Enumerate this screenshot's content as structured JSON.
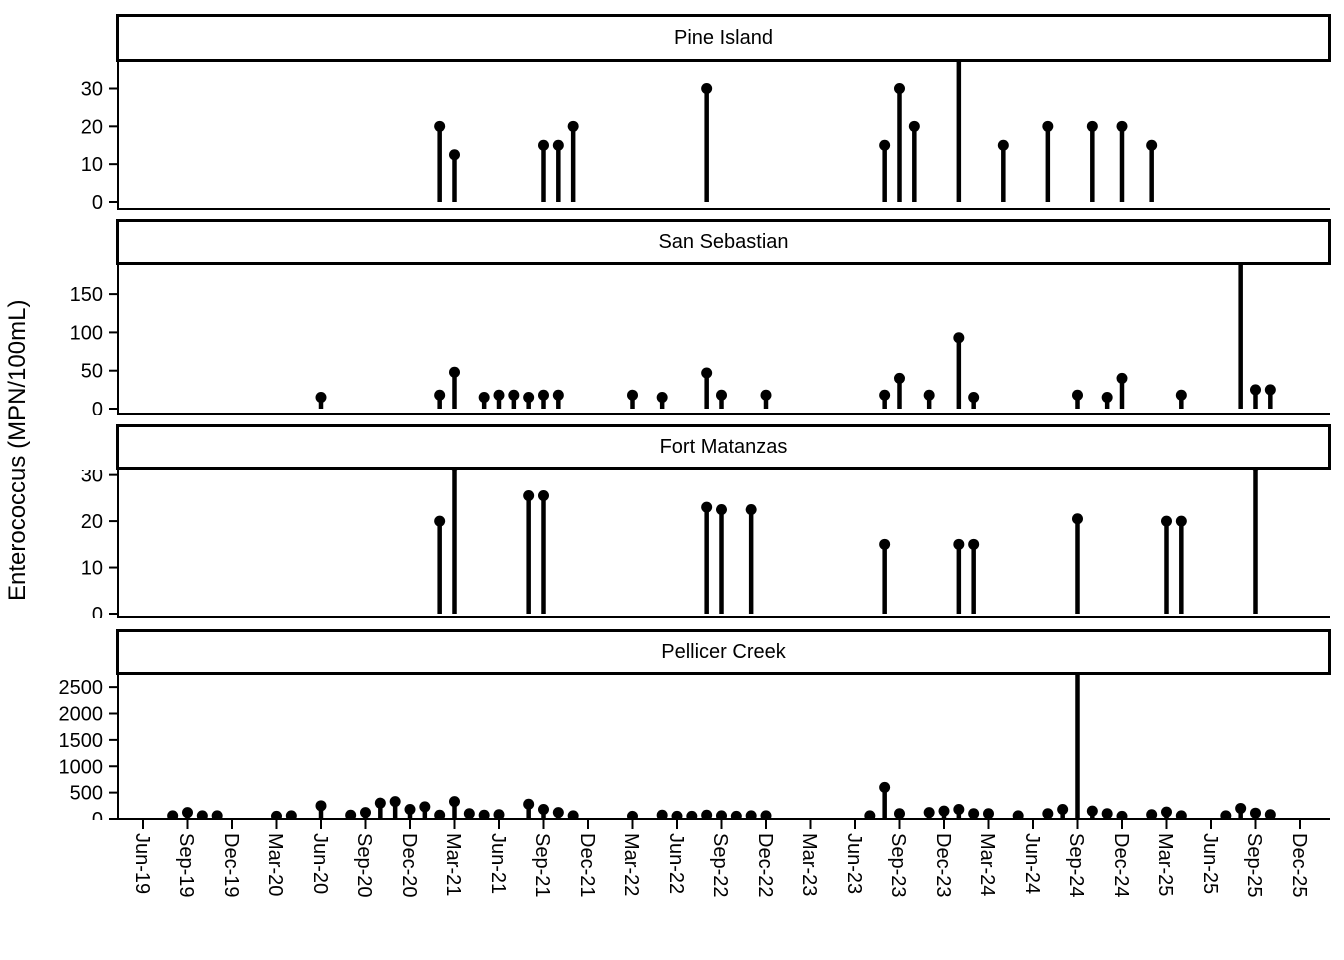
{
  "chart_data": {
    "type": "lollipop",
    "ylabel": "Enterococcus (MPN/100mL)",
    "color": "#000000",
    "background": "#ffffff",
    "grid": "off",
    "legend": "none",
    "x_tick_labels": [
      "Jun-19",
      "Sep-19",
      "Dec-19",
      "Mar-20",
      "Jun-20",
      "Sep-20",
      "Dec-20",
      "Mar-21",
      "Jun-21",
      "Sep-21",
      "Dec-21",
      "Mar-22",
      "Jun-22",
      "Sep-22",
      "Dec-22",
      "Mar-23",
      "Jun-23",
      "Sep-23",
      "Dec-23",
      "Mar-24",
      "Jun-24",
      "Sep-24",
      "Dec-24",
      "Mar-25",
      "Jun-25",
      "Sep-25",
      "Dec-25"
    ],
    "panels": [
      {
        "title": "Pine Island",
        "ylim": [
          0,
          37
        ],
        "yticks": [
          0,
          10,
          20,
          30
        ],
        "points": [
          {
            "date": "Feb-21",
            "value": 20
          },
          {
            "date": "Mar-21",
            "value": 12.5
          },
          {
            "date": "Sep-21",
            "value": 15
          },
          {
            "date": "Oct-21",
            "value": 15
          },
          {
            "date": "Nov-21",
            "value": 20
          },
          {
            "date": "Aug-22",
            "value": 30
          },
          {
            "date": "Aug-23",
            "value": 15
          },
          {
            "date": "Sep-23",
            "value": 30
          },
          {
            "date": "Oct-23",
            "value": 20
          },
          {
            "date": "Jan-24",
            "value": 45,
            "clipped": true
          },
          {
            "date": "Apr-24",
            "value": 15
          },
          {
            "date": "Jul-24",
            "value": 20
          },
          {
            "date": "Oct-24",
            "value": 20
          },
          {
            "date": "Dec-24",
            "value": 20
          },
          {
            "date": "Feb-25",
            "value": 15
          }
        ]
      },
      {
        "title": "San Sebastian",
        "ylim": [
          0,
          188
        ],
        "yticks": [
          0,
          50,
          100,
          150
        ],
        "points": [
          {
            "date": "Jun-20",
            "value": 15
          },
          {
            "date": "Feb-21",
            "value": 18
          },
          {
            "date": "Mar-21",
            "value": 48
          },
          {
            "date": "May-21",
            "value": 15
          },
          {
            "date": "Jun-21",
            "value": 18
          },
          {
            "date": "Jul-21",
            "value": 18
          },
          {
            "date": "Aug-21",
            "value": 15
          },
          {
            "date": "Sep-21",
            "value": 18
          },
          {
            "date": "Oct-21",
            "value": 18
          },
          {
            "date": "Mar-22",
            "value": 18
          },
          {
            "date": "May-22",
            "value": 15
          },
          {
            "date": "Aug-22",
            "value": 47
          },
          {
            "date": "Sep-22",
            "value": 18
          },
          {
            "date": "Dec-22",
            "value": 18
          },
          {
            "date": "Aug-23",
            "value": 18
          },
          {
            "date": "Sep-23",
            "value": 40
          },
          {
            "date": "Nov-23",
            "value": 18
          },
          {
            "date": "Jan-24",
            "value": 93
          },
          {
            "date": "Feb-24",
            "value": 15
          },
          {
            "date": "Sep-24",
            "value": 18
          },
          {
            "date": "Nov-24",
            "value": 15
          },
          {
            "date": "Dec-24",
            "value": 40
          },
          {
            "date": "Apr-25",
            "value": 18
          },
          {
            "date": "Aug-25",
            "value": 250,
            "clipped": true
          },
          {
            "date": "Sep-25",
            "value": 25
          },
          {
            "date": "Oct-25",
            "value": 25
          }
        ]
      },
      {
        "title": "Fort Matanzas",
        "ylim": [
          0,
          31
        ],
        "yticks": [
          0,
          10,
          20,
          30
        ],
        "points": [
          {
            "date": "Feb-21",
            "value": 20
          },
          {
            "date": "Mar-21",
            "value": 32,
            "clipped": true
          },
          {
            "date": "Aug-21",
            "value": 25.5
          },
          {
            "date": "Sep-21",
            "value": 25.5
          },
          {
            "date": "Aug-22",
            "value": 23
          },
          {
            "date": "Sep-22",
            "value": 22.5
          },
          {
            "date": "Nov-22",
            "value": 22.5
          },
          {
            "date": "Aug-23",
            "value": 15
          },
          {
            "date": "Jan-24",
            "value": 15
          },
          {
            "date": "Feb-24",
            "value": 15
          },
          {
            "date": "Sep-24",
            "value": 20.5
          },
          {
            "date": "Mar-25",
            "value": 20
          },
          {
            "date": "Apr-25",
            "value": 20
          },
          {
            "date": "Sep-25",
            "value": 32,
            "clipped": true
          }
        ]
      },
      {
        "title": "Pellicer Creek",
        "ylim": [
          0,
          2730
        ],
        "yticks": [
          0,
          500,
          1000,
          1500,
          2000,
          2500
        ],
        "points": [
          {
            "date": "Aug-19",
            "value": 60
          },
          {
            "date": "Sep-19",
            "value": 120
          },
          {
            "date": "Oct-19",
            "value": 60
          },
          {
            "date": "Nov-19",
            "value": 60
          },
          {
            "date": "Mar-20",
            "value": 50
          },
          {
            "date": "Apr-20",
            "value": 60
          },
          {
            "date": "Jun-20",
            "value": 250
          },
          {
            "date": "Aug-20",
            "value": 70
          },
          {
            "date": "Sep-20",
            "value": 120
          },
          {
            "date": "Oct-20",
            "value": 300
          },
          {
            "date": "Nov-20",
            "value": 330
          },
          {
            "date": "Dec-20",
            "value": 180
          },
          {
            "date": "Jan-21",
            "value": 230
          },
          {
            "date": "Feb-21",
            "value": 70
          },
          {
            "date": "Mar-21",
            "value": 330
          },
          {
            "date": "Apr-21",
            "value": 100
          },
          {
            "date": "May-21",
            "value": 70
          },
          {
            "date": "Jun-21",
            "value": 80
          },
          {
            "date": "Aug-21",
            "value": 280
          },
          {
            "date": "Sep-21",
            "value": 180
          },
          {
            "date": "Oct-21",
            "value": 120
          },
          {
            "date": "Nov-21",
            "value": 60
          },
          {
            "date": "Mar-22",
            "value": 50
          },
          {
            "date": "May-22",
            "value": 70
          },
          {
            "date": "Jun-22",
            "value": 50
          },
          {
            "date": "Jul-22",
            "value": 50
          },
          {
            "date": "Aug-22",
            "value": 70
          },
          {
            "date": "Sep-22",
            "value": 60
          },
          {
            "date": "Oct-22",
            "value": 50
          },
          {
            "date": "Nov-22",
            "value": 60
          },
          {
            "date": "Dec-22",
            "value": 60
          },
          {
            "date": "Jul-23",
            "value": 60
          },
          {
            "date": "Aug-23",
            "value": 600
          },
          {
            "date": "Sep-23",
            "value": 100
          },
          {
            "date": "Nov-23",
            "value": 120
          },
          {
            "date": "Dec-23",
            "value": 150
          },
          {
            "date": "Jan-24",
            "value": 180
          },
          {
            "date": "Feb-24",
            "value": 100
          },
          {
            "date": "Mar-24",
            "value": 100
          },
          {
            "date": "May-24",
            "value": 60
          },
          {
            "date": "Jul-24",
            "value": 100
          },
          {
            "date": "Aug-24",
            "value": 180
          },
          {
            "date": "Sep-24",
            "value": 3100,
            "clipped": true
          },
          {
            "date": "Oct-24",
            "value": 150
          },
          {
            "date": "Nov-24",
            "value": 100
          },
          {
            "date": "Dec-24",
            "value": 50
          },
          {
            "date": "Feb-25",
            "value": 80
          },
          {
            "date": "Mar-25",
            "value": 130
          },
          {
            "date": "Apr-25",
            "value": 60
          },
          {
            "date": "Jul-25",
            "value": 60
          },
          {
            "date": "Aug-25",
            "value": 200
          },
          {
            "date": "Sep-25",
            "value": 110
          },
          {
            "date": "Oct-25",
            "value": 80
          }
        ]
      }
    ]
  }
}
